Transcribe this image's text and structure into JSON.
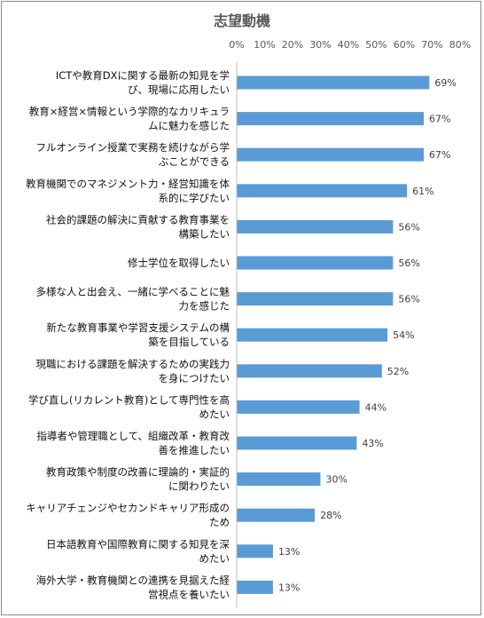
{
  "chart_data": {
    "type": "bar",
    "orientation": "horizontal",
    "title": "志望動機",
    "xlim": [
      0,
      80
    ],
    "x_ticks": [
      "0%",
      "10%",
      "20%",
      "30%",
      "40%",
      "50%",
      "60%",
      "70%",
      "80%"
    ],
    "x_tick_values": [
      0,
      10,
      20,
      30,
      40,
      50,
      60,
      70,
      80
    ],
    "grid": false,
    "legend": "none",
    "bar_color": "#5b9bd5",
    "categories": [
      [
        "ICTや教育DXに関する最新の知見を学",
        "び、現場に応用したい"
      ],
      [
        "教育×経営×情報という学際的なカリキュラ",
        "ムに魅力を感じた"
      ],
      [
        "フルオンライン授業で実務を続けながら学",
        "ぶことができる"
      ],
      [
        "教育機関でのマネジメント力・経営知識を体",
        "系的に学びたい"
      ],
      [
        "社会的課題の解決に貢献する教育事業を",
        "構築したい"
      ],
      [
        "修士学位を取得したい"
      ],
      [
        "多様な人と出会え、一緒に学べることに魅",
        "力を感じた"
      ],
      [
        "新たな教育事業や学習支援システムの構",
        "築を目指している"
      ],
      [
        "現職における課題を解決するための実践力",
        "を身につけたい"
      ],
      [
        "学び直し(リカレント教育)として専門性を高",
        "めたい"
      ],
      [
        "指導者や管理職として、組織改革・教育改",
        "善を推進したい"
      ],
      [
        "教育政策や制度の改善に理論的・実証的",
        "に関わりたい"
      ],
      [
        "キャリアチェンジやセカンドキャリア形成の",
        "ため"
      ],
      [
        "日本語教育や国際教育に関する知見を深",
        "めたい"
      ],
      [
        "海外大学・教育機関との連携を見据えた経",
        "営視点を養いたい"
      ]
    ],
    "values": [
      69,
      67,
      67,
      61,
      56,
      56,
      56,
      54,
      52,
      44,
      43,
      30,
      28,
      13,
      13
    ],
    "value_labels": [
      "69%",
      "67%",
      "67%",
      "61%",
      "56%",
      "56%",
      "56%",
      "54%",
      "52%",
      "44%",
      "43%",
      "30%",
      "28%",
      "13%",
      "13%"
    ]
  }
}
